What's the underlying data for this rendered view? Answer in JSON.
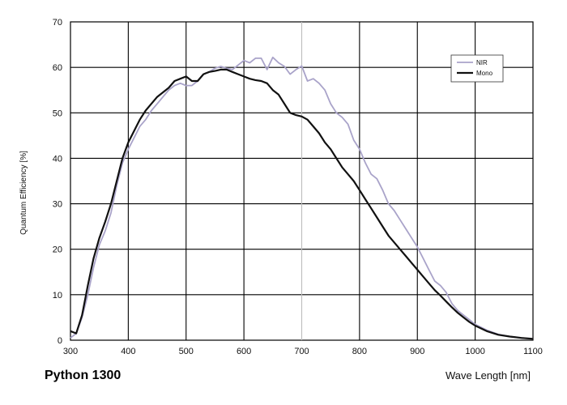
{
  "chart_data": {
    "type": "line",
    "title": "Python 1300",
    "xlabel": "Wave Length [nm]",
    "ylabel": "Quantum Efficiency [%]",
    "xlim": [
      300,
      1100
    ],
    "ylim": [
      0,
      70
    ],
    "xticks": [
      "300",
      "400",
      "500",
      "600",
      "700",
      "800",
      "900",
      "1000",
      "1100"
    ],
    "yticks": [
      "0",
      "10",
      "20",
      "30",
      "40",
      "50",
      "60",
      "70"
    ],
    "y_tick_values": [
      0,
      10,
      20,
      30,
      40,
      50,
      60,
      70
    ],
    "x_tick_values": [
      300,
      400,
      500,
      600,
      700,
      800,
      900,
      1000,
      1100
    ],
    "grid": true,
    "legend_position": "top-right",
    "series": [
      {
        "name": "NIR",
        "color": "#a9a3c9",
        "x": [
          300,
          310,
          320,
          330,
          340,
          350,
          360,
          370,
          380,
          390,
          400,
          410,
          420,
          430,
          440,
          450,
          460,
          470,
          480,
          490,
          500,
          510,
          520,
          530,
          540,
          550,
          560,
          570,
          580,
          590,
          600,
          610,
          620,
          630,
          640,
          650,
          660,
          670,
          680,
          690,
          700,
          710,
          720,
          730,
          740,
          750,
          760,
          770,
          780,
          790,
          800,
          810,
          820,
          830,
          840,
          850,
          860,
          870,
          880,
          890,
          900,
          910,
          920,
          930,
          940,
          950,
          960,
          970,
          980,
          990,
          1000,
          1020,
          1040,
          1060,
          1080,
          1100
        ],
        "y": [
          0.5,
          1.5,
          5,
          10,
          16,
          21,
          24,
          28,
          34,
          39,
          42,
          44.5,
          47,
          48.5,
          50.5,
          52,
          53.5,
          55,
          56,
          56.5,
          56,
          56,
          57,
          58.5,
          59,
          59.8,
          60.2,
          59.8,
          59.5,
          60.5,
          61.5,
          61,
          62,
          62,
          59.5,
          62.2,
          61,
          60.2,
          58.5,
          59.5,
          60.3,
          57,
          57.5,
          56.5,
          55,
          52,
          50,
          49,
          47.5,
          44,
          42,
          39,
          36.5,
          35.5,
          33,
          30,
          28.5,
          26.5,
          24.5,
          22.5,
          20.5,
          18,
          15.5,
          13,
          12,
          10.5,
          8,
          6.5,
          5.5,
          4.5,
          3.5,
          2.2,
          1.3,
          0.8,
          0.5,
          0.3
        ]
      },
      {
        "name": "Mono",
        "color": "#111111",
        "x": [
          300,
          310,
          320,
          330,
          340,
          350,
          360,
          370,
          380,
          390,
          400,
          410,
          420,
          430,
          440,
          450,
          460,
          470,
          480,
          490,
          500,
          510,
          520,
          530,
          540,
          550,
          560,
          570,
          580,
          590,
          600,
          610,
          620,
          630,
          640,
          650,
          660,
          670,
          680,
          690,
          700,
          710,
          720,
          730,
          740,
          750,
          760,
          770,
          780,
          790,
          800,
          810,
          820,
          830,
          840,
          850,
          860,
          870,
          880,
          890,
          900,
          910,
          920,
          930,
          940,
          950,
          960,
          970,
          980,
          990,
          1000,
          1020,
          1040,
          1060,
          1080,
          1100
        ],
        "y": [
          2,
          1.5,
          5.5,
          12,
          18,
          22.5,
          26,
          30,
          35,
          40,
          43.5,
          46,
          48.5,
          50.5,
          52,
          53.5,
          54.5,
          55.5,
          57,
          57.5,
          58,
          57,
          57,
          58.5,
          59,
          59.2,
          59.5,
          59.5,
          59,
          58.5,
          58,
          57.5,
          57.2,
          57,
          56.5,
          55,
          54,
          52,
          50,
          49.5,
          49.2,
          48.5,
          47,
          45.5,
          43.5,
          42,
          40,
          38,
          36.5,
          35,
          33,
          31,
          29,
          27,
          25,
          23,
          21.5,
          20,
          18.5,
          17,
          15.5,
          14,
          12.5,
          11,
          9.8,
          8.5,
          7.2,
          6,
          5,
          4,
          3.2,
          2,
          1.2,
          0.8,
          0.5,
          0.3
        ]
      }
    ]
  }
}
